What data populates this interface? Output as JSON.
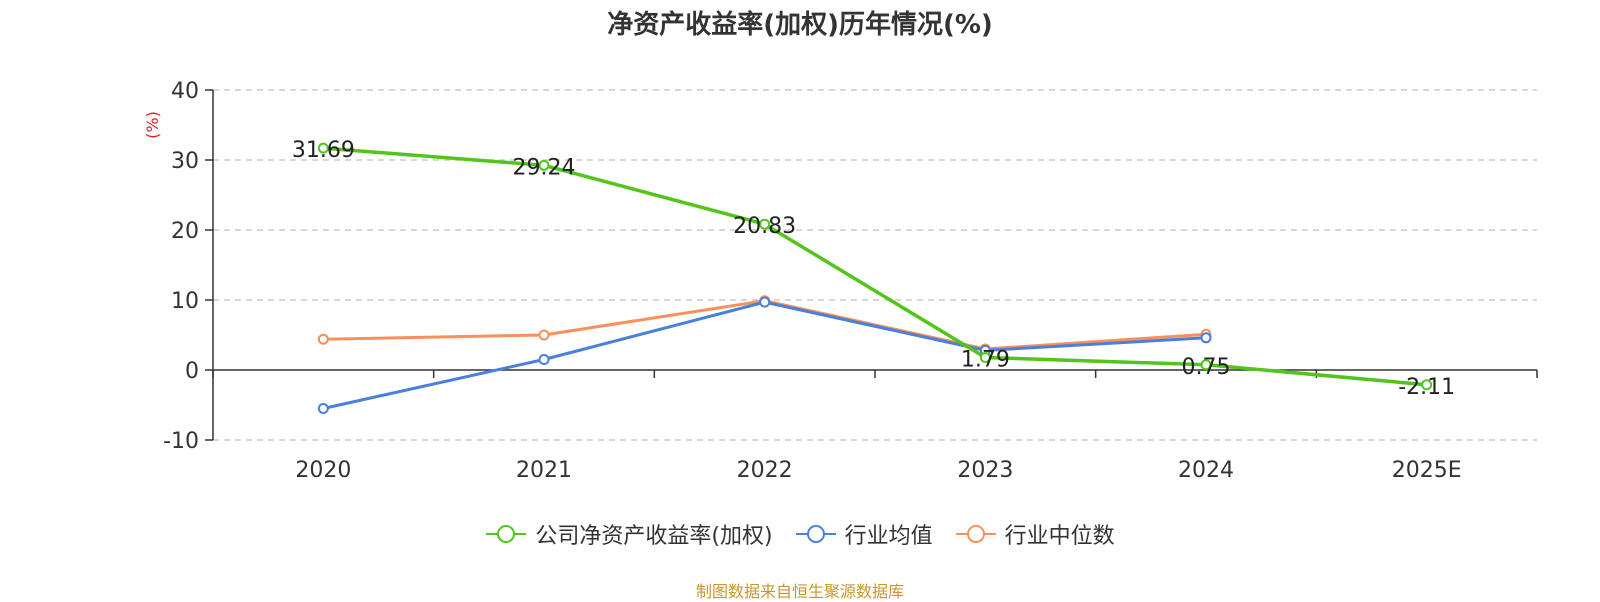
{
  "chart_data": {
    "type": "line",
    "title": "净资产收益率(加权)历年情况(%)",
    "ylabel": "(%)",
    "xlabel": "",
    "categories": [
      "2020",
      "2021",
      "2022",
      "2023",
      "2024",
      "2025E"
    ],
    "ylim": [
      -10,
      40
    ],
    "yticks": [
      -10,
      0,
      10,
      20,
      30,
      40
    ],
    "grid": true,
    "legend_position": "bottom",
    "series": [
      {
        "name": "公司净资产收益率(加权)",
        "color": "#52c41a",
        "values": [
          31.69,
          29.24,
          20.83,
          1.79,
          0.75,
          -2.11
        ],
        "labels": [
          "31.69",
          "29.24",
          "20.83",
          "1.79",
          "0.75",
          "-2.11"
        ]
      },
      {
        "name": "行业均值",
        "color": "#4a7fdb",
        "values": [
          -5.5,
          1.5,
          9.7,
          2.8,
          4.6,
          null
        ]
      },
      {
        "name": "行业中位数",
        "color": "#f7905b",
        "values": [
          4.4,
          5.0,
          9.9,
          3.0,
          5.1,
          null
        ]
      }
    ]
  },
  "footer": {
    "source": "制图数据来自恒生聚源数据库"
  }
}
